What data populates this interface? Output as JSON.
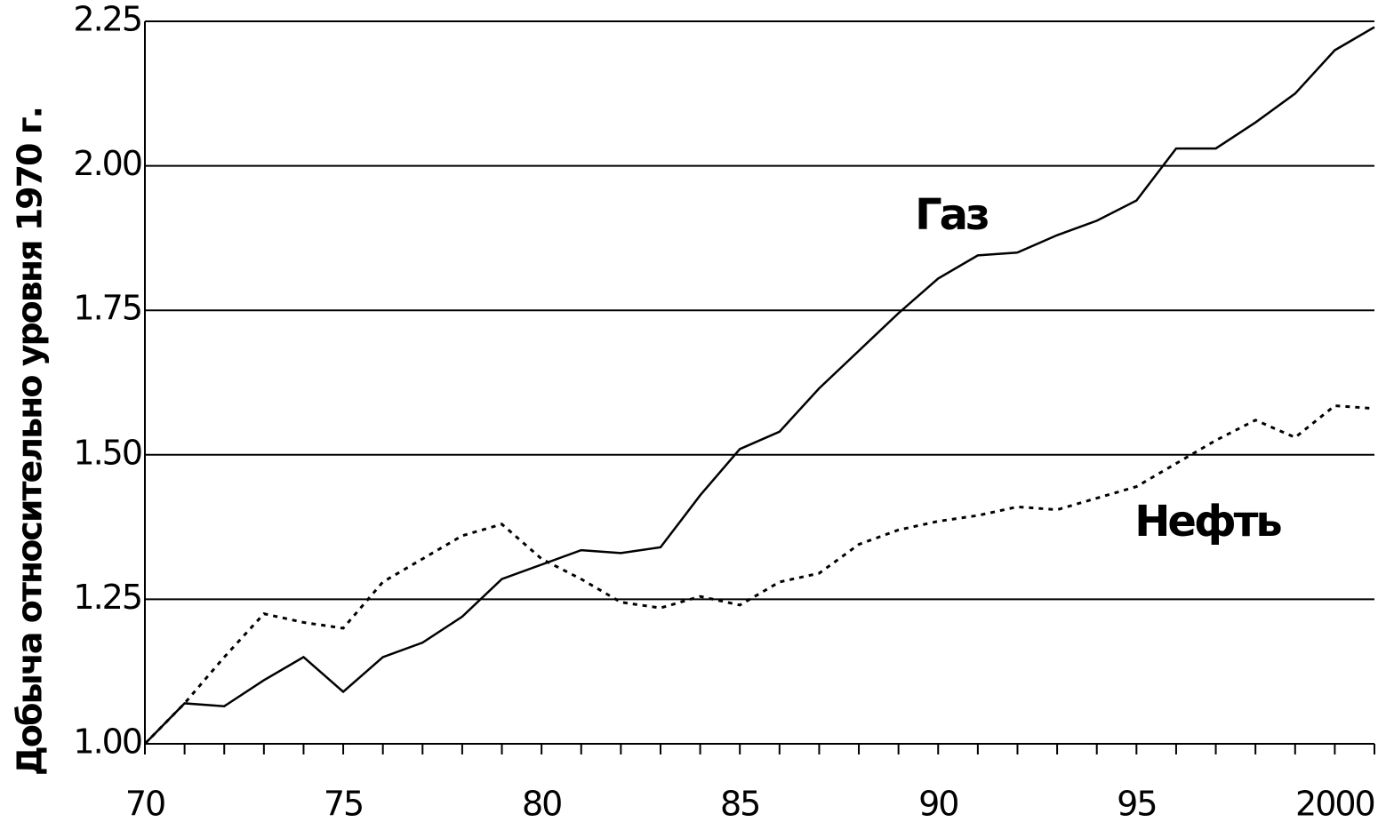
{
  "chart_data": {
    "type": "line",
    "y_label": "Добыча относительно уровня 1970 г.",
    "x": [
      1970,
      1971,
      1972,
      1973,
      1974,
      1975,
      1976,
      1977,
      1978,
      1979,
      1980,
      1981,
      1982,
      1983,
      1984,
      1985,
      1986,
      1987,
      1988,
      1989,
      1990,
      1991,
      1992,
      1993,
      1994,
      1995,
      1996,
      1997,
      1998,
      1999,
      2000,
      2001
    ],
    "series": [
      {
        "name": "Газ",
        "color": "#000000",
        "dash": false,
        "values": [
          1.0,
          1.07,
          1.065,
          1.11,
          1.15,
          1.09,
          1.15,
          1.175,
          1.22,
          1.285,
          1.31,
          1.335,
          1.33,
          1.34,
          1.43,
          1.51,
          1.54,
          1.615,
          1.68,
          1.745,
          1.805,
          1.845,
          1.85,
          1.88,
          1.905,
          1.94,
          2.03,
          2.03,
          2.075,
          2.125,
          2.2,
          2.24
        ]
      },
      {
        "name": "Нефть",
        "color": "#000000",
        "dash": true,
        "values": [
          1.0,
          1.07,
          1.15,
          1.225,
          1.21,
          1.2,
          1.28,
          1.32,
          1.36,
          1.38,
          1.32,
          1.285,
          1.245,
          1.235,
          1.255,
          1.24,
          1.28,
          1.295,
          1.345,
          1.37,
          1.385,
          1.395,
          1.41,
          1.405,
          1.425,
          1.445,
          1.485,
          1.525,
          1.56,
          1.53,
          1.585,
          1.58
        ]
      }
    ],
    "xlim": [
      1970,
      2001
    ],
    "xticks": [
      {
        "value": 1970,
        "label": "70"
      },
      {
        "value": 1975,
        "label": "75"
      },
      {
        "value": 1980,
        "label": "80"
      },
      {
        "value": 1985,
        "label": "85"
      },
      {
        "value": 1990,
        "label": "90"
      },
      {
        "value": 1995,
        "label": "95"
      },
      2000
    ],
    "ylim": [
      1,
      2.25
    ],
    "yticks": [
      {
        "value": 1,
        "label": "1.00"
      },
      {
        "value": 1.25,
        "label": "1.25"
      },
      {
        "value": 1.5,
        "label": "1.50"
      },
      {
        "value": 1.75,
        "label": "1.75"
      },
      {
        "value": 2,
        "label": "2.00"
      },
      {
        "value": 2.25,
        "label": "2.25"
      }
    ],
    "grid": true
  }
}
